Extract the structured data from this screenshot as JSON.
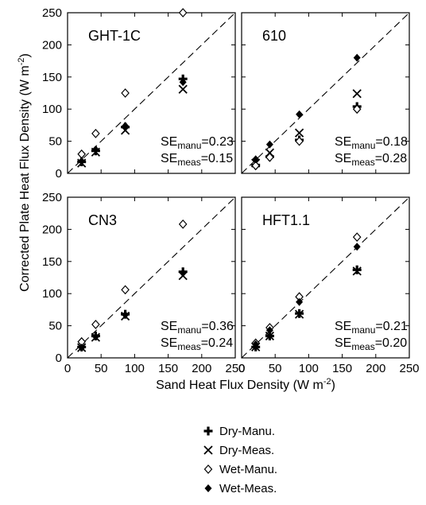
{
  "figure": {
    "y_axis_label": "Corrected Plate Heat Flux Density (W m",
    "y_axis_unit_sup": "-2",
    "y_axis_label_end": ")",
    "x_axis_label": "Sand Heat Flux Density (W m",
    "x_axis_unit_sup": "-2",
    "x_axis_label_end": ")"
  },
  "legend": [
    {
      "label": "Dry-Manu.",
      "marker": "plus"
    },
    {
      "label": "Dry-Meas.",
      "marker": "cross"
    },
    {
      "label": "Wet-Manu.",
      "marker": "open-diamond"
    },
    {
      "label": "Wet-Meas.",
      "marker": "filled-diamond"
    }
  ],
  "chart_data": [
    {
      "type": "scatter",
      "title": "GHT-1C",
      "xlim": [
        0,
        250
      ],
      "ylim": [
        0,
        250
      ],
      "x_ticks": [
        "0",
        "50",
        "100",
        "150",
        "200",
        "250"
      ],
      "y_ticks": [
        "0",
        "50",
        "100",
        "150",
        "200",
        "250"
      ],
      "reference_line": "1:1 dashed",
      "annotations": [
        {
          "prefix": "SE",
          "sub": "manu",
          "value": "=0.23"
        },
        {
          "prefix": "SE",
          "sub": "meas",
          "value": "=0.15"
        }
      ],
      "series": [
        {
          "name": "Dry-Manu.",
          "marker": "plus",
          "x": [
            21,
            42,
            86,
            172
          ],
          "y": [
            18,
            35,
            72,
            147
          ]
        },
        {
          "name": "Dry-Meas.",
          "marker": "cross",
          "x": [
            21,
            42,
            86,
            172
          ],
          "y": [
            16,
            33,
            67,
            131
          ]
        },
        {
          "name": "Wet-Manu.",
          "marker": "open-diamond",
          "x": [
            21,
            42,
            86,
            172
          ],
          "y": [
            30,
            62,
            125,
            250
          ]
        },
        {
          "name": "Wet-Meas.",
          "marker": "filled-diamond",
          "x": [
            21,
            42,
            86,
            172
          ],
          "y": [
            19,
            37,
            74,
            142
          ]
        }
      ]
    },
    {
      "type": "scatter",
      "title": "610",
      "xlim": [
        0,
        250
      ],
      "ylim": [
        0,
        250
      ],
      "x_ticks": [
        "0",
        "50",
        "100",
        "150",
        "200",
        "250"
      ],
      "y_ticks": [
        "0",
        "50",
        "100",
        "150",
        "200",
        "250"
      ],
      "reference_line": "1:1 dashed",
      "annotations": [
        {
          "prefix": "SE",
          "sub": "manu",
          "value": "=0.18"
        },
        {
          "prefix": "SE",
          "sub": "meas",
          "value": "=0.28"
        }
      ],
      "series": [
        {
          "name": "Dry-Manu.",
          "marker": "plus",
          "x": [
            21,
            42,
            86,
            172
          ],
          "y": [
            13,
            26,
            52,
            104
          ]
        },
        {
          "name": "Dry-Meas.",
          "marker": "cross",
          "x": [
            21,
            42,
            86,
            172
          ],
          "y": [
            16,
            32,
            63,
            124
          ]
        },
        {
          "name": "Wet-Manu.",
          "marker": "open-diamond",
          "x": [
            21,
            42,
            86,
            172
          ],
          "y": [
            12,
            25,
            50,
            100
          ]
        },
        {
          "name": "Wet-Meas.",
          "marker": "filled-diamond",
          "x": [
            21,
            42,
            86,
            172
          ],
          "y": [
            22,
            45,
            92,
            180
          ]
        }
      ]
    },
    {
      "type": "scatter",
      "title": "CN3",
      "xlim": [
        0,
        250
      ],
      "ylim": [
        0,
        250
      ],
      "x_ticks": [
        "0",
        "50",
        "100",
        "150",
        "200",
        "250"
      ],
      "y_ticks": [
        "0",
        "50",
        "100",
        "150",
        "200",
        "250"
      ],
      "reference_line": "1:1 dashed",
      "annotations": [
        {
          "prefix": "SE",
          "sub": "manu",
          "value": "=0.36"
        },
        {
          "prefix": "SE",
          "sub": "meas",
          "value": "=0.24"
        }
      ],
      "series": [
        {
          "name": "Dry-Manu.",
          "marker": "plus",
          "x": [
            21,
            42,
            86,
            172
          ],
          "y": [
            17,
            34,
            68,
            134
          ]
        },
        {
          "name": "Dry-Meas.",
          "marker": "cross",
          "x": [
            21,
            42,
            86,
            172
          ],
          "y": [
            16,
            32,
            65,
            128
          ]
        },
        {
          "name": "Wet-Manu.",
          "marker": "open-diamond",
          "x": [
            21,
            42,
            86,
            172
          ],
          "y": [
            25,
            52,
            106,
            208
          ]
        },
        {
          "name": "Wet-Meas.",
          "marker": "filled-diamond",
          "x": [
            21,
            42,
            86,
            172
          ],
          "y": [
            16,
            33,
            67,
            132
          ]
        }
      ]
    },
    {
      "type": "scatter",
      "title": "HFT1.1",
      "xlim": [
        0,
        250
      ],
      "ylim": [
        0,
        250
      ],
      "x_ticks": [
        "0",
        "50",
        "100",
        "150",
        "200",
        "250"
      ],
      "y_ticks": [
        "0",
        "50",
        "100",
        "150",
        "200",
        "250"
      ],
      "reference_line": "1:1 dashed",
      "annotations": [
        {
          "prefix": "SE",
          "sub": "manu",
          "value": "=0.21"
        },
        {
          "prefix": "SE",
          "sub": "meas",
          "value": "=0.20"
        }
      ],
      "series": [
        {
          "name": "Dry-Manu.",
          "marker": "plus",
          "x": [
            21,
            42,
            86,
            172
          ],
          "y": [
            17,
            34,
            69,
            137
          ]
        },
        {
          "name": "Dry-Meas.",
          "marker": "cross",
          "x": [
            21,
            42,
            86,
            172
          ],
          "y": [
            17,
            34,
            68,
            135
          ]
        },
        {
          "name": "Wet-Manu.",
          "marker": "open-diamond",
          "x": [
            21,
            42,
            86,
            172
          ],
          "y": [
            23,
            47,
            95,
            188
          ]
        },
        {
          "name": "Wet-Meas.",
          "marker": "filled-diamond",
          "x": [
            21,
            42,
            86,
            172
          ],
          "y": [
            21,
            43,
            87,
            173
          ]
        }
      ]
    }
  ]
}
